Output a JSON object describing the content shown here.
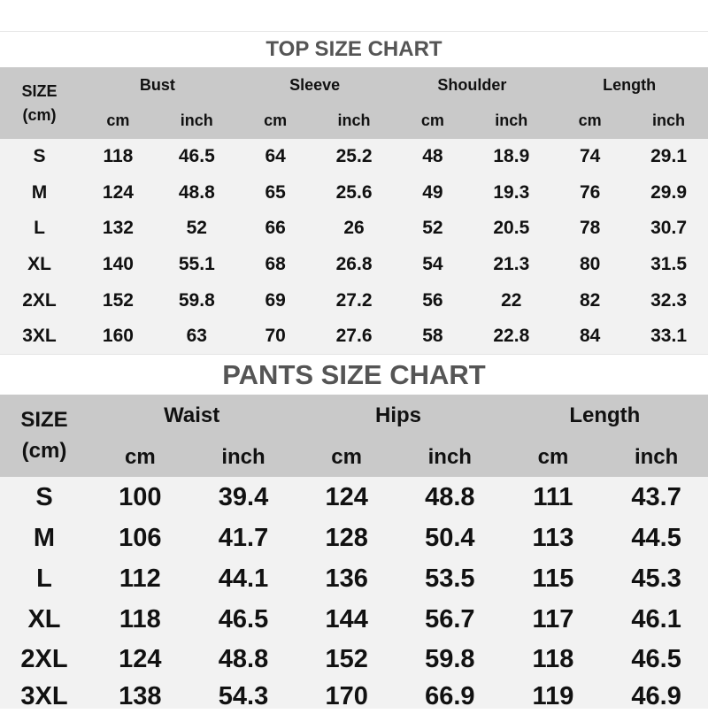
{
  "top": {
    "title": "TOP SIZE CHART",
    "size_label": "SIZE",
    "size_unit": "(cm)",
    "groups": [
      "Bust",
      "Sleeve",
      "Shoulder",
      "Length"
    ],
    "subheaders": [
      "cm",
      "inch",
      "cm",
      "inch",
      "cm",
      "inch",
      "cm",
      "inch"
    ],
    "rows": [
      [
        "S",
        "118",
        "46.5",
        "64",
        "25.2",
        "48",
        "18.9",
        "74",
        "29.1"
      ],
      [
        "M",
        "124",
        "48.8",
        "65",
        "25.6",
        "49",
        "19.3",
        "76",
        "29.9"
      ],
      [
        "L",
        "132",
        "52",
        "66",
        "26",
        "52",
        "20.5",
        "78",
        "30.7"
      ],
      [
        "XL",
        "140",
        "55.1",
        "68",
        "26.8",
        "54",
        "21.3",
        "80",
        "31.5"
      ],
      [
        "2XL",
        "152",
        "59.8",
        "69",
        "27.2",
        "56",
        "22",
        "82",
        "32.3"
      ],
      [
        "3XL",
        "160",
        "63",
        "70",
        "27.6",
        "58",
        "22.8",
        "84",
        "33.1"
      ]
    ]
  },
  "pants": {
    "title": "PANTS SIZE CHART",
    "size_label": "SIZE",
    "size_unit": "(cm)",
    "groups": [
      "Waist",
      "Hips",
      "Length"
    ],
    "subheaders": [
      "cm",
      "inch",
      "cm",
      "inch",
      "cm",
      "inch"
    ],
    "rows": [
      [
        "S",
        "100",
        "39.4",
        "124",
        "48.8",
        "111",
        "43.7"
      ],
      [
        "M",
        "106",
        "41.7",
        "128",
        "50.4",
        "113",
        "44.5"
      ],
      [
        "L",
        "112",
        "44.1",
        "136",
        "53.5",
        "115",
        "45.3"
      ],
      [
        "XL",
        "118",
        "46.5",
        "144",
        "56.7",
        "117",
        "46.1"
      ],
      [
        "2XL",
        "124",
        "48.8",
        "152",
        "59.8",
        "118",
        "46.5"
      ],
      [
        "3XL",
        "138",
        "54.3",
        "170",
        "66.9",
        "119",
        "46.9"
      ]
    ]
  },
  "colors": {
    "header_bg": "#c9c9c9",
    "body_bg": "#f2f2f2",
    "title_text": "#555555"
  }
}
